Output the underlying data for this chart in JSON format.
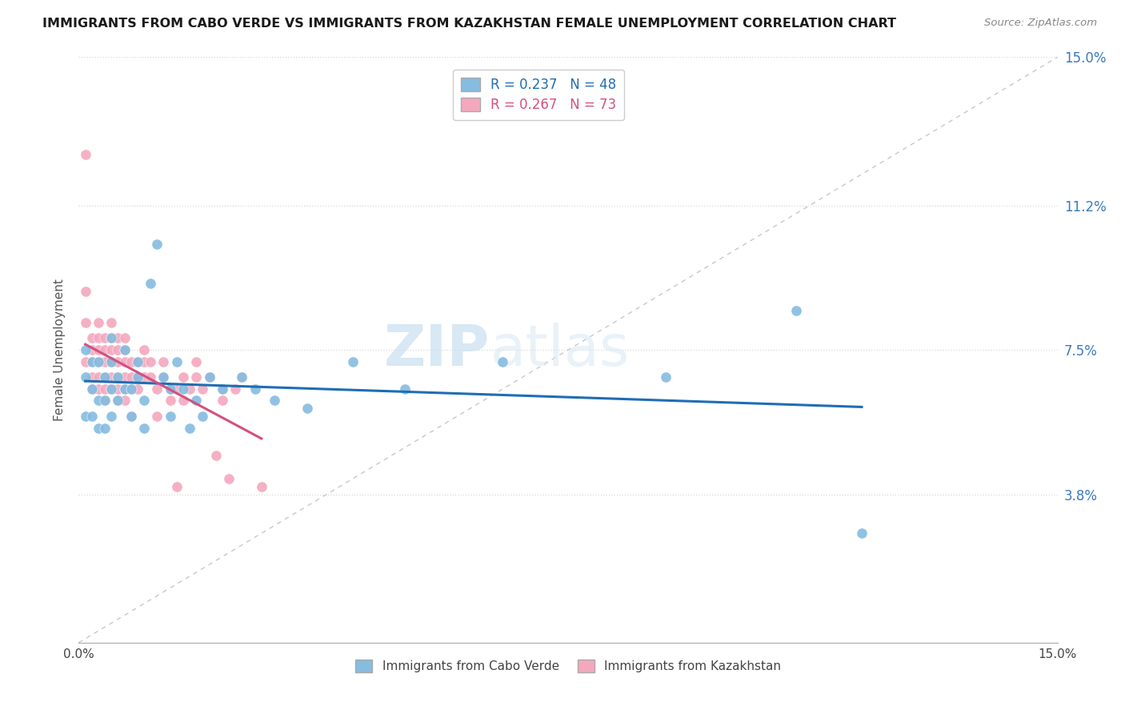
{
  "title": "IMMIGRANTS FROM CABO VERDE VS IMMIGRANTS FROM KAZAKHSTAN FEMALE UNEMPLOYMENT CORRELATION CHART",
  "source": "Source: ZipAtlas.com",
  "ylabel": "Female Unemployment",
  "xmin": 0.0,
  "xmax": 0.15,
  "ymin": 0.0,
  "ymax": 0.15,
  "ytick_vals": [
    0.038,
    0.075,
    0.112,
    0.15
  ],
  "ytick_labels": [
    "3.8%",
    "7.5%",
    "11.2%",
    "15.0%"
  ],
  "r_cabo_verde": 0.237,
  "n_cabo_verde": 48,
  "r_kazakhstan": 0.267,
  "n_kazakhstan": 73,
  "color_cabo_verde": "#85bce0",
  "color_kazakhstan": "#f4a8be",
  "trendline_cabo_verde_color": "#1f6db5",
  "trendline_kazakhstan_color": "#d45080",
  "diagonal_color": "#c8c8c8",
  "cabo_verde_points": [
    [
      0.001,
      0.075
    ],
    [
      0.001,
      0.068
    ],
    [
      0.001,
      0.058
    ],
    [
      0.002,
      0.058
    ],
    [
      0.002,
      0.065
    ],
    [
      0.002,
      0.072
    ],
    [
      0.003,
      0.072
    ],
    [
      0.003,
      0.062
    ],
    [
      0.003,
      0.055
    ],
    [
      0.004,
      0.068
    ],
    [
      0.004,
      0.055
    ],
    [
      0.004,
      0.062
    ],
    [
      0.005,
      0.065
    ],
    [
      0.005,
      0.072
    ],
    [
      0.005,
      0.078
    ],
    [
      0.005,
      0.058
    ],
    [
      0.006,
      0.068
    ],
    [
      0.006,
      0.062
    ],
    [
      0.007,
      0.075
    ],
    [
      0.007,
      0.065
    ],
    [
      0.008,
      0.065
    ],
    [
      0.008,
      0.058
    ],
    [
      0.009,
      0.068
    ],
    [
      0.009,
      0.072
    ],
    [
      0.01,
      0.062
    ],
    [
      0.01,
      0.055
    ],
    [
      0.011,
      0.092
    ],
    [
      0.012,
      0.102
    ],
    [
      0.013,
      0.068
    ],
    [
      0.014,
      0.058
    ],
    [
      0.014,
      0.065
    ],
    [
      0.015,
      0.072
    ],
    [
      0.016,
      0.065
    ],
    [
      0.017,
      0.055
    ],
    [
      0.018,
      0.062
    ],
    [
      0.019,
      0.058
    ],
    [
      0.02,
      0.068
    ],
    [
      0.022,
      0.065
    ],
    [
      0.025,
      0.068
    ],
    [
      0.027,
      0.065
    ],
    [
      0.03,
      0.062
    ],
    [
      0.035,
      0.06
    ],
    [
      0.042,
      0.072
    ],
    [
      0.05,
      0.065
    ],
    [
      0.065,
      0.072
    ],
    [
      0.09,
      0.068
    ],
    [
      0.11,
      0.085
    ],
    [
      0.12,
      0.028
    ]
  ],
  "kazakhstan_points": [
    [
      0.001,
      0.125
    ],
    [
      0.001,
      0.09
    ],
    [
      0.001,
      0.082
    ],
    [
      0.001,
      0.072
    ],
    [
      0.002,
      0.078
    ],
    [
      0.002,
      0.072
    ],
    [
      0.002,
      0.068
    ],
    [
      0.002,
      0.065
    ],
    [
      0.002,
      0.075
    ],
    [
      0.003,
      0.072
    ],
    [
      0.003,
      0.068
    ],
    [
      0.003,
      0.078
    ],
    [
      0.003,
      0.065
    ],
    [
      0.003,
      0.075
    ],
    [
      0.003,
      0.082
    ],
    [
      0.004,
      0.072
    ],
    [
      0.004,
      0.068
    ],
    [
      0.004,
      0.065
    ],
    [
      0.004,
      0.075
    ],
    [
      0.004,
      0.078
    ],
    [
      0.004,
      0.062
    ],
    [
      0.005,
      0.072
    ],
    [
      0.005,
      0.068
    ],
    [
      0.005,
      0.075
    ],
    [
      0.005,
      0.065
    ],
    [
      0.005,
      0.078
    ],
    [
      0.005,
      0.082
    ],
    [
      0.006,
      0.072
    ],
    [
      0.006,
      0.068
    ],
    [
      0.006,
      0.065
    ],
    [
      0.006,
      0.078
    ],
    [
      0.006,
      0.075
    ],
    [
      0.006,
      0.062
    ],
    [
      0.007,
      0.072
    ],
    [
      0.007,
      0.068
    ],
    [
      0.007,
      0.075
    ],
    [
      0.007,
      0.065
    ],
    [
      0.007,
      0.062
    ],
    [
      0.007,
      0.078
    ],
    [
      0.008,
      0.072
    ],
    [
      0.008,
      0.068
    ],
    [
      0.008,
      0.065
    ],
    [
      0.008,
      0.058
    ],
    [
      0.009,
      0.072
    ],
    [
      0.009,
      0.068
    ],
    [
      0.009,
      0.065
    ],
    [
      0.01,
      0.072
    ],
    [
      0.01,
      0.068
    ],
    [
      0.01,
      0.075
    ],
    [
      0.011,
      0.068
    ],
    [
      0.011,
      0.072
    ],
    [
      0.012,
      0.065
    ],
    [
      0.012,
      0.058
    ],
    [
      0.013,
      0.068
    ],
    [
      0.013,
      0.072
    ],
    [
      0.014,
      0.065
    ],
    [
      0.014,
      0.062
    ],
    [
      0.015,
      0.065
    ],
    [
      0.015,
      0.04
    ],
    [
      0.016,
      0.068
    ],
    [
      0.016,
      0.062
    ],
    [
      0.017,
      0.065
    ],
    [
      0.018,
      0.068
    ],
    [
      0.018,
      0.072
    ],
    [
      0.019,
      0.065
    ],
    [
      0.02,
      0.068
    ],
    [
      0.021,
      0.048
    ],
    [
      0.022,
      0.065
    ],
    [
      0.022,
      0.062
    ],
    [
      0.023,
      0.042
    ],
    [
      0.024,
      0.065
    ],
    [
      0.025,
      0.068
    ],
    [
      0.028,
      0.04
    ]
  ],
  "watermark_zip": "ZIP",
  "watermark_atlas": "atlas",
  "background_color": "#ffffff",
  "grid_color": "#d8d8d8"
}
